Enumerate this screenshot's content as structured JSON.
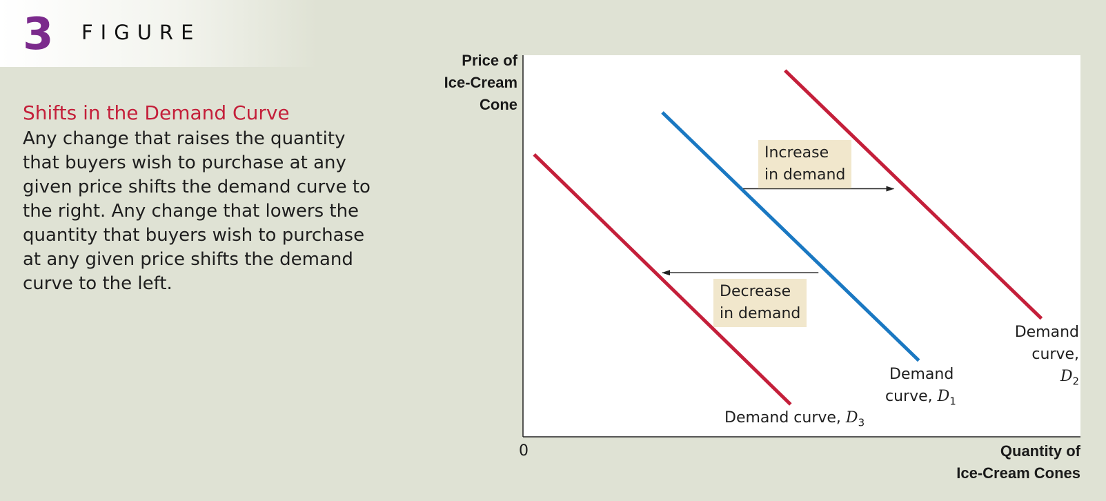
{
  "figure": {
    "number": "3",
    "label": "FIGURE"
  },
  "caption": {
    "title": "Shifts in the Demand Curve",
    "text": "Any change that raises the quantity that buyers wish to purchase at any given price shifts the demand curve to the right. Any change that lowers the quantity that buyers wish to purchase at any given price shifts the demand curve to the left."
  },
  "colors": {
    "accent_red": "#c41f3a",
    "accent_blue": "#1a78c2",
    "figure_purple": "#7b2a8c",
    "background": "#dfe2d4",
    "annotation_bg": "#f1e7cc"
  },
  "chart_data": {
    "type": "line",
    "ylabel_lines": [
      "Price of",
      "Ice-Cream",
      "Cone"
    ],
    "xlabel_lines": [
      "Quantity of",
      "Ice-Cream Cones"
    ],
    "origin_label": "0",
    "grid": false,
    "series": [
      {
        "name": "D1",
        "label_prefix": "Demand",
        "label_line2": "curve,",
        "label_var": "D",
        "label_sub": "1",
        "color": "#1a78c2",
        "points": [
          [
            2.5,
            8.5
          ],
          [
            7.1,
            2.0
          ]
        ]
      },
      {
        "name": "D2",
        "label_prefix": "Demand",
        "label_line2": "curve,",
        "label_var": "D",
        "label_sub": "2",
        "color": "#c41f3a",
        "points": [
          [
            4.7,
            9.6
          ],
          [
            9.3,
            3.1
          ]
        ]
      },
      {
        "name": "D3",
        "label_prefix": "Demand curve,",
        "label_var": "D",
        "label_sub": "3",
        "color": "#c41f3a",
        "points": [
          [
            0.2,
            7.4
          ],
          [
            4.8,
            0.85
          ]
        ]
      }
    ],
    "annotations": [
      {
        "text_lines": [
          "Increase",
          "in demand"
        ],
        "arrow_from": [
          3.95,
          6.5
        ],
        "arrow_to": [
          6.65,
          6.5
        ]
      },
      {
        "text_lines": [
          "Decrease",
          "in demand"
        ],
        "arrow_from": [
          5.3,
          4.3
        ],
        "arrow_to": [
          2.5,
          4.3
        ]
      }
    ]
  }
}
